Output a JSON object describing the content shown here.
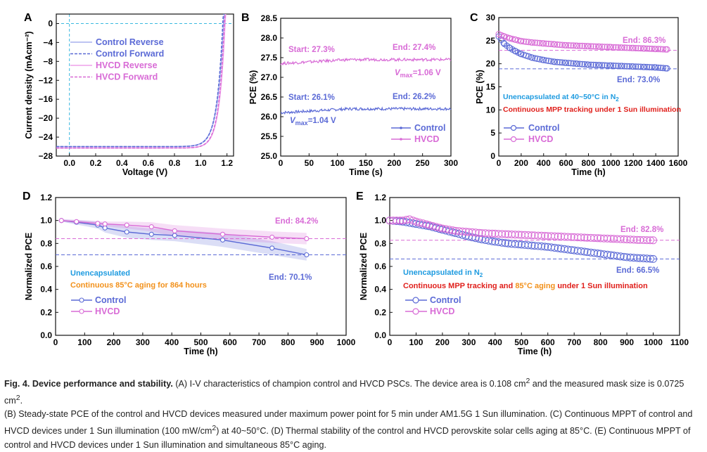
{
  "colors": {
    "control": "#5b6ad6",
    "hvcd": "#d86bd6",
    "dash_cyan": "#39b8e0",
    "note_blue": "#1e9be0",
    "note_orange": "#f2911b",
    "note_red": "#e0201c"
  },
  "chart_data": [
    {
      "panel": "A",
      "type": "line",
      "xlabel": "Voltage (V)",
      "ylabel": "Current density (mAcm⁻²)",
      "xlim": [
        -0.1,
        1.25
      ],
      "ylim": [
        -28,
        2
      ],
      "xticks": [
        "0.0",
        "0.2",
        "0.4",
        "0.6",
        "0.8",
        "1.0",
        "1.2"
      ],
      "yticks": [
        "0",
        "−4",
        "−8",
        "−12",
        "−16",
        "−20",
        "−24",
        "−28"
      ],
      "xtick_values": [
        0,
        0.2,
        0.4,
        0.6,
        0.8,
        1.0,
        1.2
      ],
      "ytick_values": [
        0,
        -4,
        -8,
        -12,
        -16,
        -20,
        -24,
        -28
      ],
      "legend_position": "upper-left",
      "series": [
        {
          "name": "Control Reverse",
          "style": "solid",
          "color": "#a7b0ee",
          "jsc": -26.0,
          "voc": 1.174,
          "n": 0.048
        },
        {
          "name": "Control Forward",
          "style": "dashed",
          "color": "#5b6ad6",
          "jsc": -26.0,
          "voc": 1.168,
          "n": 0.045
        },
        {
          "name": "HVCD   Reverse",
          "style": "solid",
          "color": "#efa0ea",
          "jsc": -26.3,
          "voc": 1.185,
          "n": 0.044
        },
        {
          "name": "HVCD   Forward",
          "style": "dashed",
          "color": "#d86bd6",
          "jsc": -26.3,
          "voc": 1.18,
          "n": 0.043
        }
      ],
      "reference_lines": {
        "x": 0,
        "y": 0
      }
    },
    {
      "panel": "B",
      "type": "line",
      "xlabel": "Time (s)",
      "ylabel": "PCE (%)",
      "xlim": [
        0,
        300
      ],
      "ylim": [
        25.0,
        28.5
      ],
      "xticks": [
        "0",
        "50",
        "100",
        "150",
        "200",
        "250",
        "300"
      ],
      "yticks": [
        "25.0",
        "25.5",
        "26.0",
        "26.5",
        "27.0",
        "27.5",
        "28.0",
        "28.5"
      ],
      "xtick_values": [
        0,
        50,
        100,
        150,
        200,
        250,
        300
      ],
      "ytick_values": [
        25.0,
        25.5,
        26.0,
        26.5,
        27.0,
        27.5,
        28.0,
        28.5
      ],
      "legend_position": "lower-right",
      "series": [
        {
          "name": "Control",
          "start": 26.1,
          "end": 26.2,
          "noise": 0.035
        },
        {
          "name": "HVCD",
          "start": 27.35,
          "end": 27.45,
          "noise": 0.035
        }
      ],
      "annotations": {
        "hvcd_start": "Start: 27.3%",
        "hvcd_end": "End: 27.4%",
        "hvcd_vmax": "=1.06 V",
        "control_start": "Start: 26.1%",
        "control_end": "End: 26.2%",
        "control_vmax": "=1.04 V",
        "v": "V",
        "sub": "max"
      }
    },
    {
      "panel": "C",
      "type": "scatter",
      "xlabel": "Time (h)",
      "ylabel": "PCE (%)",
      "xlim": [
        0,
        1600
      ],
      "ylim": [
        0,
        30
      ],
      "xticks": [
        "0",
        "200",
        "400",
        "600",
        "800",
        "1000",
        "1200",
        "1400",
        "1600"
      ],
      "yticks": [
        "0",
        "5",
        "10",
        "15",
        "20",
        "25",
        "30"
      ],
      "xtick_values": [
        0,
        200,
        400,
        600,
        800,
        1000,
        1200,
        1400,
        1600
      ],
      "ytick_values": [
        0,
        5,
        10,
        15,
        20,
        25,
        30
      ],
      "legend_position": "lower-left",
      "series": [
        {
          "name": "Control",
          "x": [
            0,
            50,
            100,
            150,
            200,
            300,
            400,
            500,
            600,
            700,
            800,
            900,
            1000,
            1100,
            1200,
            1300,
            1400,
            1500
          ],
          "y": [
            25.9,
            24.3,
            23.4,
            22.7,
            22.1,
            21.3,
            20.8,
            20.4,
            20.2,
            20.0,
            19.8,
            19.7,
            19.6,
            19.5,
            19.4,
            19.3,
            19.2,
            19.0
          ]
        },
        {
          "name": "HVCD",
          "x": [
            0,
            50,
            100,
            150,
            200,
            300,
            400,
            500,
            600,
            700,
            800,
            900,
            1000,
            1100,
            1200,
            1300,
            1400,
            1500
          ],
          "y": [
            26.4,
            25.9,
            25.5,
            25.2,
            24.9,
            24.6,
            24.4,
            24.2,
            24.0,
            23.9,
            23.8,
            23.7,
            23.6,
            23.5,
            23.4,
            23.3,
            23.2,
            23.1
          ]
        }
      ],
      "hlines": [
        {
          "y": 22.9,
          "series": "HVCD"
        },
        {
          "y": 18.9,
          "series": "Control"
        }
      ],
      "annotations": {
        "hvcd_end": "End: 86.3%",
        "control_end": "End: 73.0%",
        "note1": "Unencapsulated at 40~50°C in N",
        "note1_sub": "2",
        "note2": "Continuous MPP tracking under 1 Sun illumination"
      }
    },
    {
      "panel": "D",
      "type": "line",
      "xlabel": "Time (h)",
      "ylabel": "Normalized PCE",
      "xlim": [
        0,
        1000
      ],
      "ylim": [
        0.0,
        1.2
      ],
      "xticks": [
        "0",
        "100",
        "200",
        "300",
        "400",
        "500",
        "600",
        "700",
        "800",
        "900",
        "1000"
      ],
      "yticks": [
        "0.0",
        "0.2",
        "0.4",
        "0.6",
        "0.8",
        "1.0",
        "1.2"
      ],
      "xtick_values": [
        0,
        100,
        200,
        300,
        400,
        500,
        600,
        700,
        800,
        900,
        1000
      ],
      "ytick_values": [
        0.0,
        0.2,
        0.4,
        0.6,
        0.8,
        1.0,
        1.2
      ],
      "legend_position": "lower-left",
      "series": [
        {
          "name": "Control",
          "x": [
            20,
            72,
            145,
            170,
            245,
            330,
            410,
            575,
            745,
            864
          ],
          "y": [
            1.0,
            0.985,
            0.96,
            0.935,
            0.9,
            0.88,
            0.87,
            0.83,
            0.76,
            0.701
          ],
          "band": [
            0.01,
            0.02,
            0.03,
            0.04,
            0.05,
            0.05,
            0.05,
            0.06,
            0.06,
            0.05
          ]
        },
        {
          "name": "HVCD",
          "x": [
            20,
            72,
            145,
            170,
            245,
            330,
            410,
            575,
            745,
            864
          ],
          "y": [
            1.0,
            0.99,
            0.975,
            0.97,
            0.96,
            0.945,
            0.91,
            0.88,
            0.855,
            0.842
          ],
          "band": [
            0.01,
            0.015,
            0.02,
            0.02,
            0.03,
            0.04,
            0.05,
            0.05,
            0.05,
            0.05
          ]
        }
      ],
      "hlines": [
        {
          "y": 0.842,
          "series": "HVCD"
        },
        {
          "y": 0.701,
          "series": "Control"
        }
      ],
      "annotations": {
        "hvcd_end": "End: 84.2%",
        "control_end": "End: 70.1%",
        "note1": "Unencapsulated",
        "note2": "Continuous 85°C aging for 864 hours"
      }
    },
    {
      "panel": "E",
      "type": "scatter",
      "xlabel": "Time (h)",
      "ylabel": "Normalized PCE",
      "xlim": [
        0,
        1100
      ],
      "ylim": [
        0.0,
        1.2
      ],
      "xticks": [
        "0",
        "100",
        "200",
        "300",
        "400",
        "500",
        "600",
        "700",
        "800",
        "900",
        "1000",
        "1100"
      ],
      "yticks": [
        "0.0",
        "0.2",
        "0.4",
        "0.6",
        "0.8",
        "1.0",
        "1.2"
      ],
      "xtick_values": [
        0,
        100,
        200,
        300,
        400,
        500,
        600,
        700,
        800,
        900,
        1000,
        1100
      ],
      "ytick_values": [
        0.0,
        0.2,
        0.4,
        0.6,
        0.8,
        1.0,
        1.2
      ],
      "legend_position": "lower-left",
      "series": [
        {
          "name": "Control",
          "x": [
            0,
            50,
            100,
            150,
            200,
            250,
            300,
            350,
            400,
            450,
            500,
            550,
            600,
            650,
            700,
            750,
            800,
            850,
            900,
            950,
            1000
          ],
          "y": [
            1.0,
            0.99,
            0.97,
            0.95,
            0.92,
            0.89,
            0.86,
            0.835,
            0.815,
            0.8,
            0.79,
            0.78,
            0.77,
            0.755,
            0.74,
            0.725,
            0.71,
            0.695,
            0.68,
            0.672,
            0.665
          ]
        },
        {
          "name": "HVCD",
          "x": [
            0,
            50,
            75,
            100,
            150,
            200,
            250,
            300,
            350,
            400,
            450,
            500,
            550,
            600,
            650,
            700,
            750,
            800,
            850,
            900,
            950,
            1000
          ],
          "y": [
            1.0,
            1.0,
            1.01,
            0.99,
            0.96,
            0.93,
            0.91,
            0.9,
            0.89,
            0.885,
            0.88,
            0.875,
            0.87,
            0.865,
            0.86,
            0.855,
            0.85,
            0.845,
            0.84,
            0.835,
            0.83,
            0.828
          ]
        }
      ],
      "hlines": [
        {
          "y": 0.828,
          "series": "HVCD"
        },
        {
          "y": 0.665,
          "series": "Control"
        }
      ],
      "annotations": {
        "hvcd_end": "End: 82.8%",
        "control_end": "End: 66.5%",
        "note1": "Unencapsulated in N",
        "note1_sub": "2",
        "note2a": "Continuous MPP tracking  and ",
        "note2b": "85°C aging",
        "note2c": " under 1 Sun illumination"
      }
    }
  ],
  "caption": {
    "title": "Fig. 4. Device performance and stability.",
    "line1_a": " (A) I-V characteristics of champion control and HVCD PSCs. The device area is 0.108 cm",
    "line1_sup1": "2",
    "line1_b": " and the measured mask size is 0.0725 cm",
    "line1_sup2": "2",
    "line1_c": ".",
    "line2": "(B) Steady-state PCE of the control and HVCD devices measured under maximum power point for 5 min under AM1.5G 1 Sun illumination. (C) Continuous MPPT of control and",
    "line3_a": "HVCD devices under 1 Sun illumination (100 mW/cm",
    "line3_sup": "2",
    "line3_b": ") at 40~50°C. (D) Thermal stability of the control and HVCD perovskite solar cells aging at 85°C. (E) Continuous MPPT of",
    "line4": "control and HVCD devices under 1 Sun illumination and simultaneous 85°C aging."
  }
}
